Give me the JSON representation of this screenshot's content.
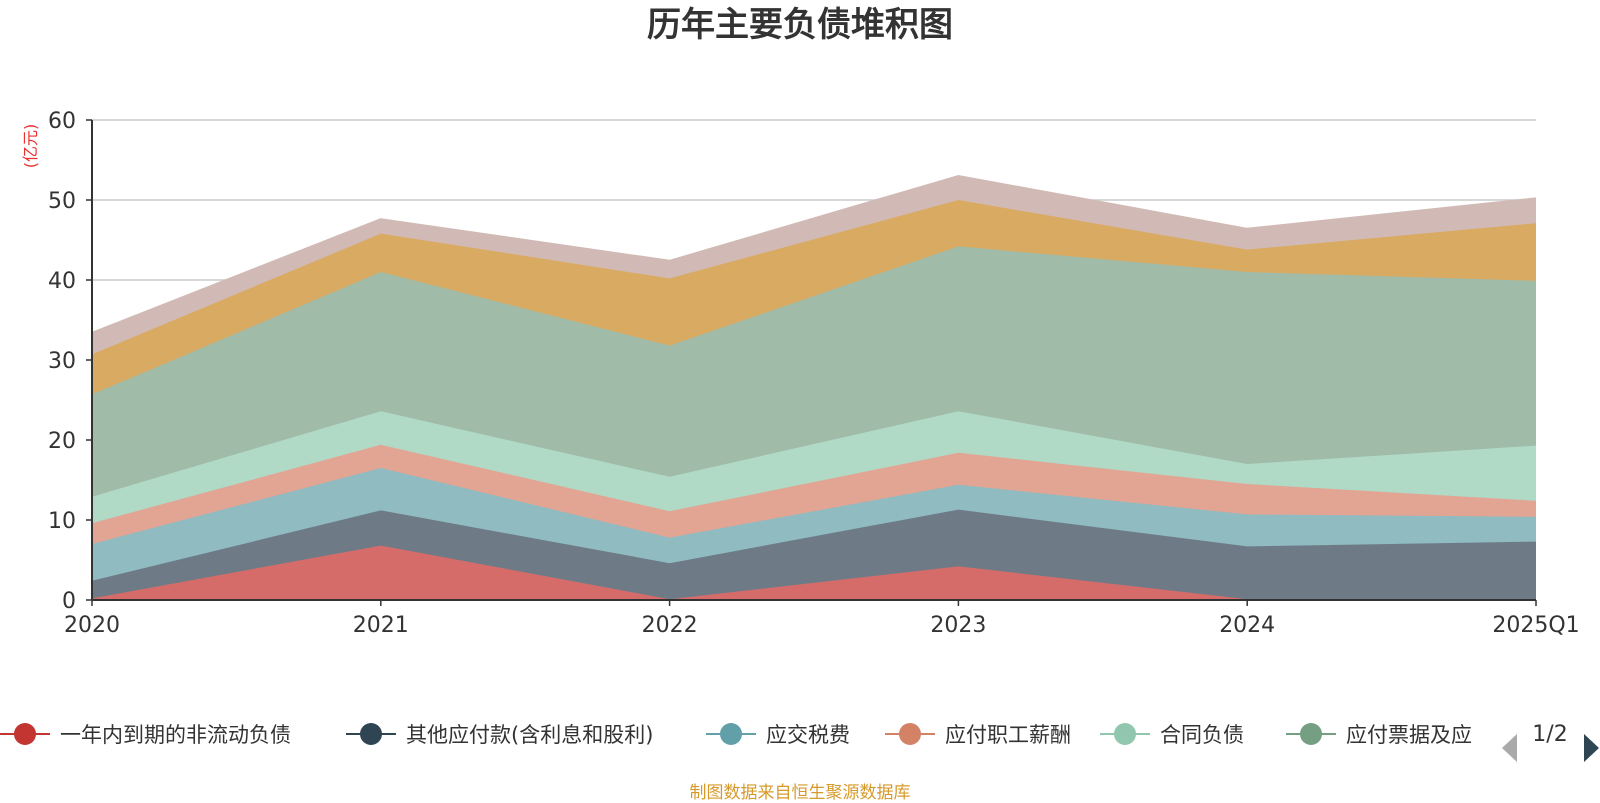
{
  "chart_data": {
    "type": "area",
    "stacked": true,
    "title": "历年主要负债堆积图",
    "ylabel": "(亿元)",
    "x": [
      "2020",
      "2021",
      "2022",
      "2023",
      "2024",
      "2025Q1"
    ],
    "ylim": [
      0,
      60
    ],
    "yticks": [
      0,
      10,
      20,
      30,
      40,
      50,
      60
    ],
    "grid": true,
    "series": [
      {
        "name": "一年内到期的非流动负债",
        "color": "#d66c6a",
        "marker": "#c23531",
        "values": [
          0.2,
          6.8,
          0.1,
          4.2,
          0.1,
          0.1
        ]
      },
      {
        "name": "其他应付款(含利息和股利)",
        "color": "#6e7b86",
        "marker": "#2f4554",
        "values": [
          2.2,
          4.4,
          4.5,
          7.1,
          6.6,
          7.2
        ]
      },
      {
        "name": "应交税费",
        "color": "#8fbbc1",
        "marker": "#61a0a8",
        "values": [
          4.6,
          5.3,
          3.2,
          3.1,
          4.0,
          3.1
        ]
      },
      {
        "name": "应付职工薪酬",
        "color": "#e2a593",
        "marker": "#d48265",
        "values": [
          2.6,
          2.9,
          3.3,
          4.0,
          3.8,
          2.0
        ]
      },
      {
        "name": "合同负债",
        "color": "#b0d9c6",
        "marker": "#91c7ae",
        "values": [
          3.3,
          4.2,
          4.3,
          5.2,
          2.5,
          6.9
        ]
      },
      {
        "name": "应付票据及应付账款",
        "color": "#a0bba7",
        "marker": "#749f83",
        "values": [
          12.8,
          17.4,
          16.4,
          20.6,
          24.0,
          20.6
        ]
      },
      {
        "name": "",
        "color": "#d9aa62",
        "marker": "#ca8622",
        "values": [
          5.0,
          4.8,
          8.4,
          5.8,
          2.8,
          7.2
        ]
      },
      {
        "name": "",
        "color": "#d1bab5",
        "marker": "#bda29a",
        "values": [
          2.7,
          1.8,
          2.2,
          3.0,
          2.6,
          3.1
        ]
      }
    ]
  },
  "legend": {
    "visible_labels": [
      "一年内到期的非流动负债",
      "其他应付款(含利息和股利)",
      "应交税费",
      "应付职工薪酬",
      "合同负债",
      "应付票据及应"
    ],
    "page": "1/2"
  },
  "footer": "制图数据来自恒生聚源数据库"
}
